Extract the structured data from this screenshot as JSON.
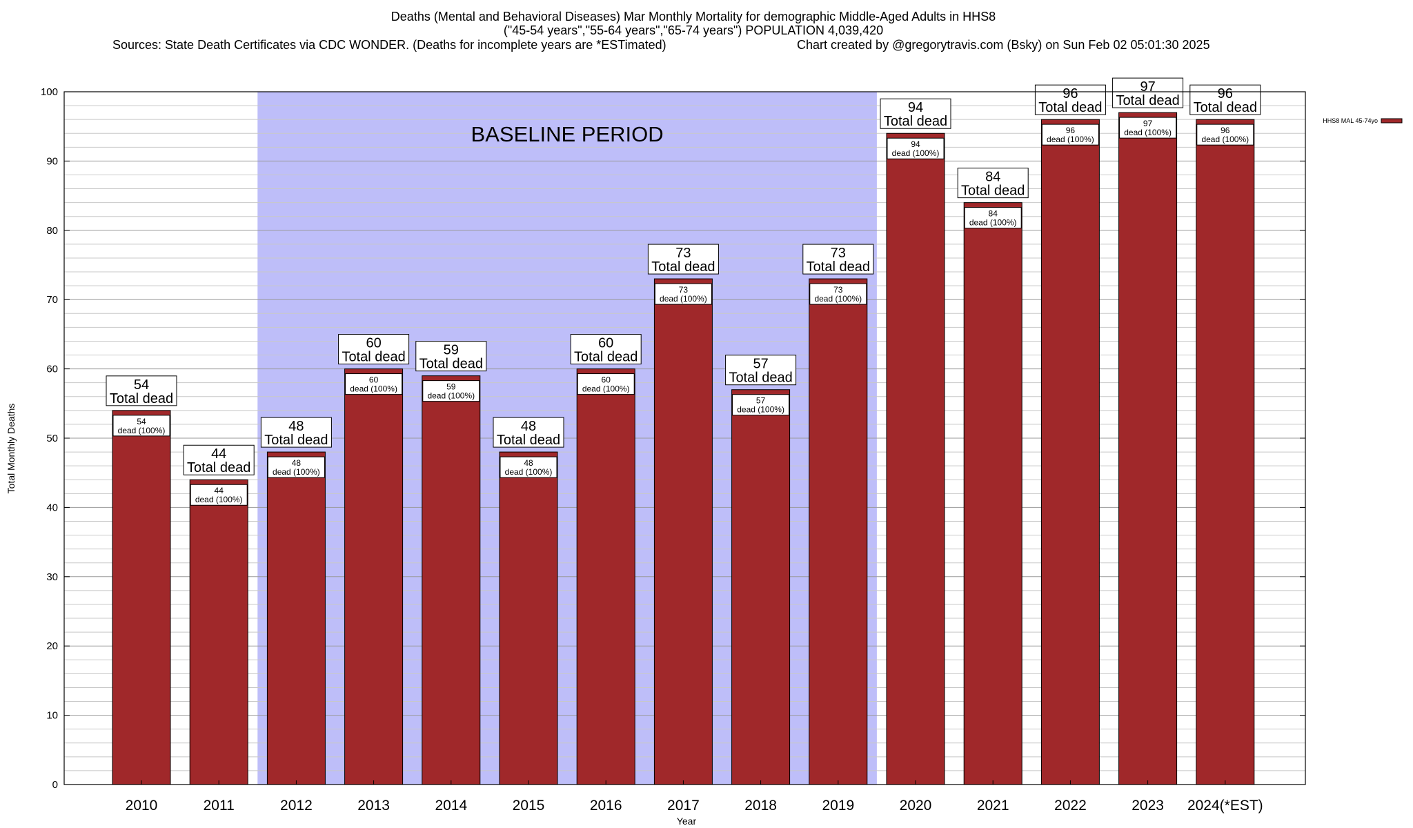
{
  "title": {
    "line1": "Deaths (Mental and Behavioral Diseases) Mar Monthly Mortality for demographic Middle-Aged Adults in HHS8",
    "line2": "(\"45-54 years\",\"55-64 years\",\"65-74 years\") POPULATION 4,039,420",
    "line3_left": "Sources: State Death Certificates via CDC WONDER. (Deaths for incomplete years are *ESTimated)",
    "line3_right": "Chart created by @gregorytravis.com (Bsky) on Sun Feb 02 05:01:30 2025"
  },
  "chart_data": {
    "type": "bar",
    "xlabel": "Year",
    "ylabel": "Total Monthly Deaths",
    "ylim": [
      0,
      100
    ],
    "yticks": [
      0,
      10,
      20,
      30,
      40,
      50,
      60,
      70,
      80,
      90,
      100
    ],
    "minor_grid_step": 2,
    "grid": true,
    "categories": [
      "2010",
      "2011",
      "2012",
      "2013",
      "2014",
      "2015",
      "2016",
      "2017",
      "2018",
      "2019",
      "2020",
      "2021",
      "2022",
      "2023",
      "2024(*EST)"
    ],
    "series": [
      {
        "name": "HHS8 MAL 45-74yo",
        "color": "#a0282a",
        "values": [
          54,
          44,
          48,
          60,
          59,
          48,
          60,
          73,
          57,
          73,
          94,
          84,
          96,
          97,
          96
        ]
      }
    ],
    "total_label_suffix": "Total dead",
    "inner_label_suffix": "dead (100%)",
    "band": {
      "label": "BASELINE PERIOD",
      "from": "2012",
      "to": "2019",
      "color": "#bebef9"
    },
    "legend_position": "top-right"
  }
}
